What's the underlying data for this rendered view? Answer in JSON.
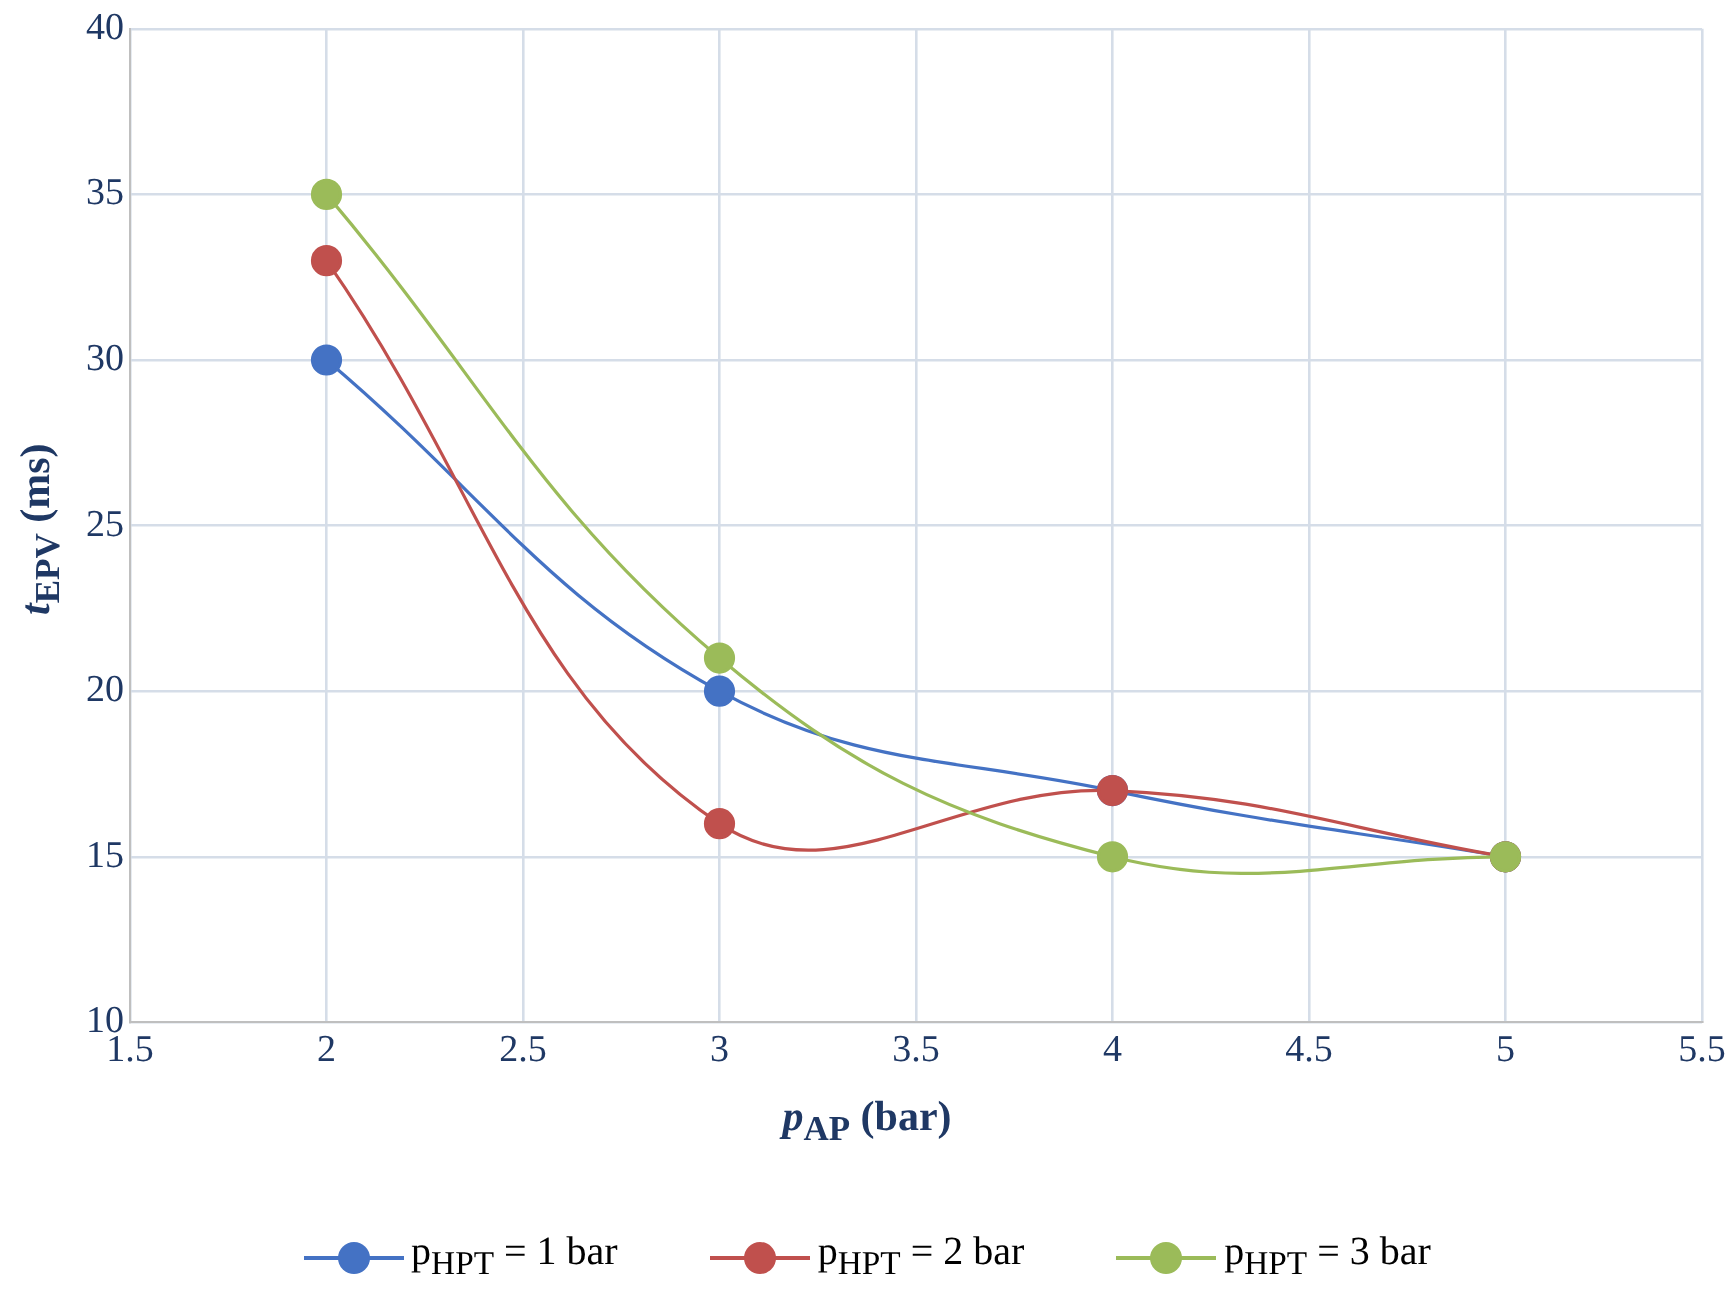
{
  "chart_data": {
    "type": "line",
    "xlabel": "p$_{AP}$ (bar)",
    "ylabel": "t$_{EPV}$ (ms)",
    "x": [
      2,
      3,
      4,
      5
    ],
    "series": [
      {
        "name": "p$_{HPT}$ = 1 bar",
        "color": "#4472c4",
        "values": [
          30,
          20,
          17,
          15
        ]
      },
      {
        "name": "p$_{HPT}$ = 2 bar",
        "color": "#c0504d",
        "values": [
          33,
          16,
          17,
          15
        ]
      },
      {
        "name": "p$_{HPT}$ = 3 bar",
        "color": "#9bbb59",
        "values": [
          35,
          21,
          15,
          15
        ]
      }
    ],
    "xlim": [
      1.5,
      5.5
    ],
    "xticks": [
      1.5,
      2,
      2.5,
      3,
      3.5,
      4,
      4.5,
      5,
      5.5
    ],
    "ylim": [
      10,
      40
    ],
    "yticks": [
      10,
      15,
      20,
      25,
      30,
      35,
      40
    ],
    "grid": true,
    "legend": "bottom",
    "marker": "circle",
    "line_style": "solid"
  }
}
